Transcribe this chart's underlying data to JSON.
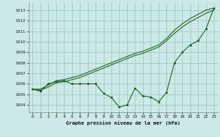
{
  "xlabel": "Graphe pression niveau de la mer (hPa)",
  "xlim": [
    -0.5,
    23.5
  ],
  "ylim": [
    1003.3,
    1013.7
  ],
  "yticks": [
    1004,
    1005,
    1006,
    1007,
    1008,
    1009,
    1010,
    1011,
    1012,
    1013
  ],
  "xticks": [
    0,
    1,
    2,
    3,
    4,
    5,
    6,
    7,
    8,
    9,
    10,
    11,
    12,
    13,
    14,
    15,
    16,
    17,
    18,
    19,
    20,
    21,
    22,
    23
  ],
  "bg_color": "#cce8e8",
  "grid_color": "#99ccbb",
  "line_color": "#1a5c1a",
  "series_upper": [
    1005.5,
    1005.5,
    1005.9,
    1006.3,
    1006.4,
    1006.6,
    1006.8,
    1007.1,
    1007.4,
    1007.7,
    1008.0,
    1008.3,
    1008.6,
    1008.9,
    1009.1,
    1009.4,
    1009.7,
    1010.3,
    1011.1,
    1011.7,
    1012.2,
    1012.6,
    1013.0,
    1013.2
  ],
  "series_lower": [
    1005.5,
    1005.4,
    1005.7,
    1006.1,
    1006.2,
    1006.4,
    1006.6,
    1006.9,
    1007.2,
    1007.5,
    1007.8,
    1008.1,
    1008.4,
    1008.7,
    1008.9,
    1009.2,
    1009.5,
    1010.1,
    1010.8,
    1011.4,
    1011.9,
    1012.3,
    1012.7,
    1013.0
  ],
  "series_actual": [
    1005.5,
    1005.3,
    1006.0,
    1006.2,
    1006.3,
    1006.0,
    1006.0,
    1006.0,
    1006.0,
    1005.1,
    1004.7,
    1003.8,
    1004.0,
    1005.6,
    1004.85,
    1004.75,
    1004.3,
    1005.2,
    1008.0,
    1009.0,
    1009.7,
    1010.1,
    1011.2,
    1013.2
  ]
}
